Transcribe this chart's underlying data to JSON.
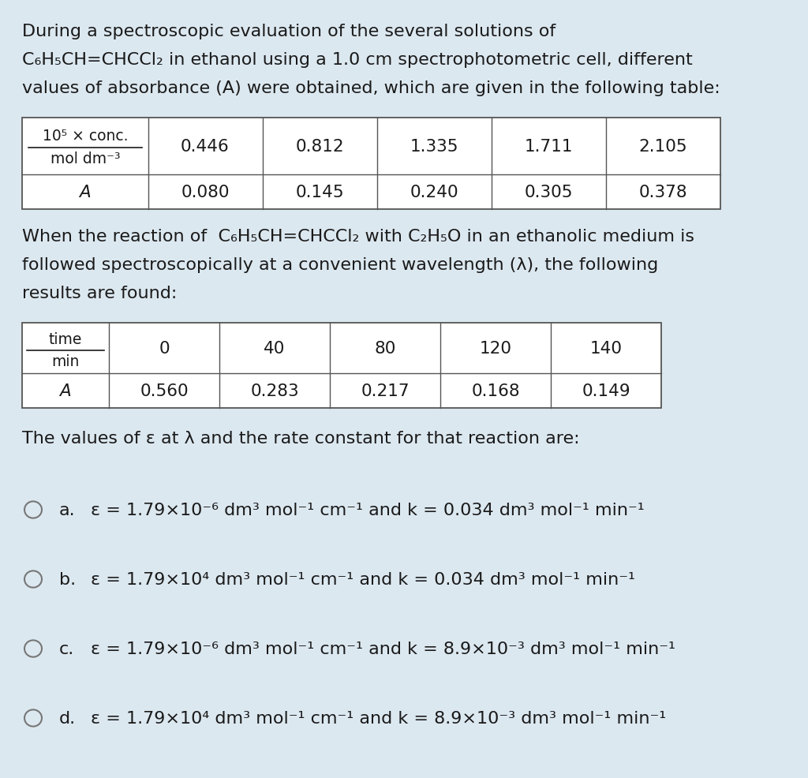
{
  "bg_color": "#dce8f0",
  "text_color": "#1a1a1a",
  "fig_width": 10.24,
  "fig_height": 9.87,
  "dpi": 100,
  "intro_lines": [
    "During a spectroscopic evaluation of the several solutions of",
    "C₆H₅CH=CHCCl₂ in ethanol using a 1.0 cm spectrophotometric cell, different",
    "values of absorbance (A) were obtained, which are given in the following table:"
  ],
  "table1_conc": [
    "0.446",
    "0.812",
    "1.335",
    "1.711",
    "2.105"
  ],
  "table1_abs": [
    "0.080",
    "0.145",
    "0.240",
    "0.305",
    "0.378"
  ],
  "middle_lines": [
    "When the reaction of  C₆H₅CH=CHCCl₂ with C₂H₅O in an ethanolic medium is",
    "followed spectroscopically at a convenient wavelength (λ), the following",
    "results are found:"
  ],
  "table2_time": [
    "0",
    "40",
    "80",
    "120",
    "140"
  ],
  "table2_abs": [
    "0.560",
    "0.283",
    "0.217",
    "0.168",
    "0.149"
  ],
  "question_text": "The values of ε at λ and the rate constant for that reaction are:",
  "options_label": [
    "a.",
    "b.",
    "c.",
    "d."
  ],
  "options_text": [
    "ε = 1.79×10⁻⁶ dm³ mol⁻¹ cm⁻¹ and k = 0.034 dm³ mol⁻¹ min⁻¹",
    "ε = 1.79×10⁴ dm³ mol⁻¹ cm⁻¹ and k = 0.034 dm³ mol⁻¹ min⁻¹",
    "ε = 1.79×10⁻⁶ dm³ mol⁻¹ cm⁻¹ and k = 8.9×10⁻³ dm³ mol⁻¹ min⁻¹",
    "ε = 1.79×10⁴ dm³ mol⁻¹ cm⁻¹ and k = 8.9×10⁻³ dm³ mol⁻¹ min⁻¹"
  ],
  "font_size_body": 16.0,
  "font_size_table": 15.5,
  "font_size_table_header": 13.5,
  "font_size_options": 16.0,
  "border_color": "#555555",
  "table_bg": "#ffffff",
  "radio_color": "#777777"
}
